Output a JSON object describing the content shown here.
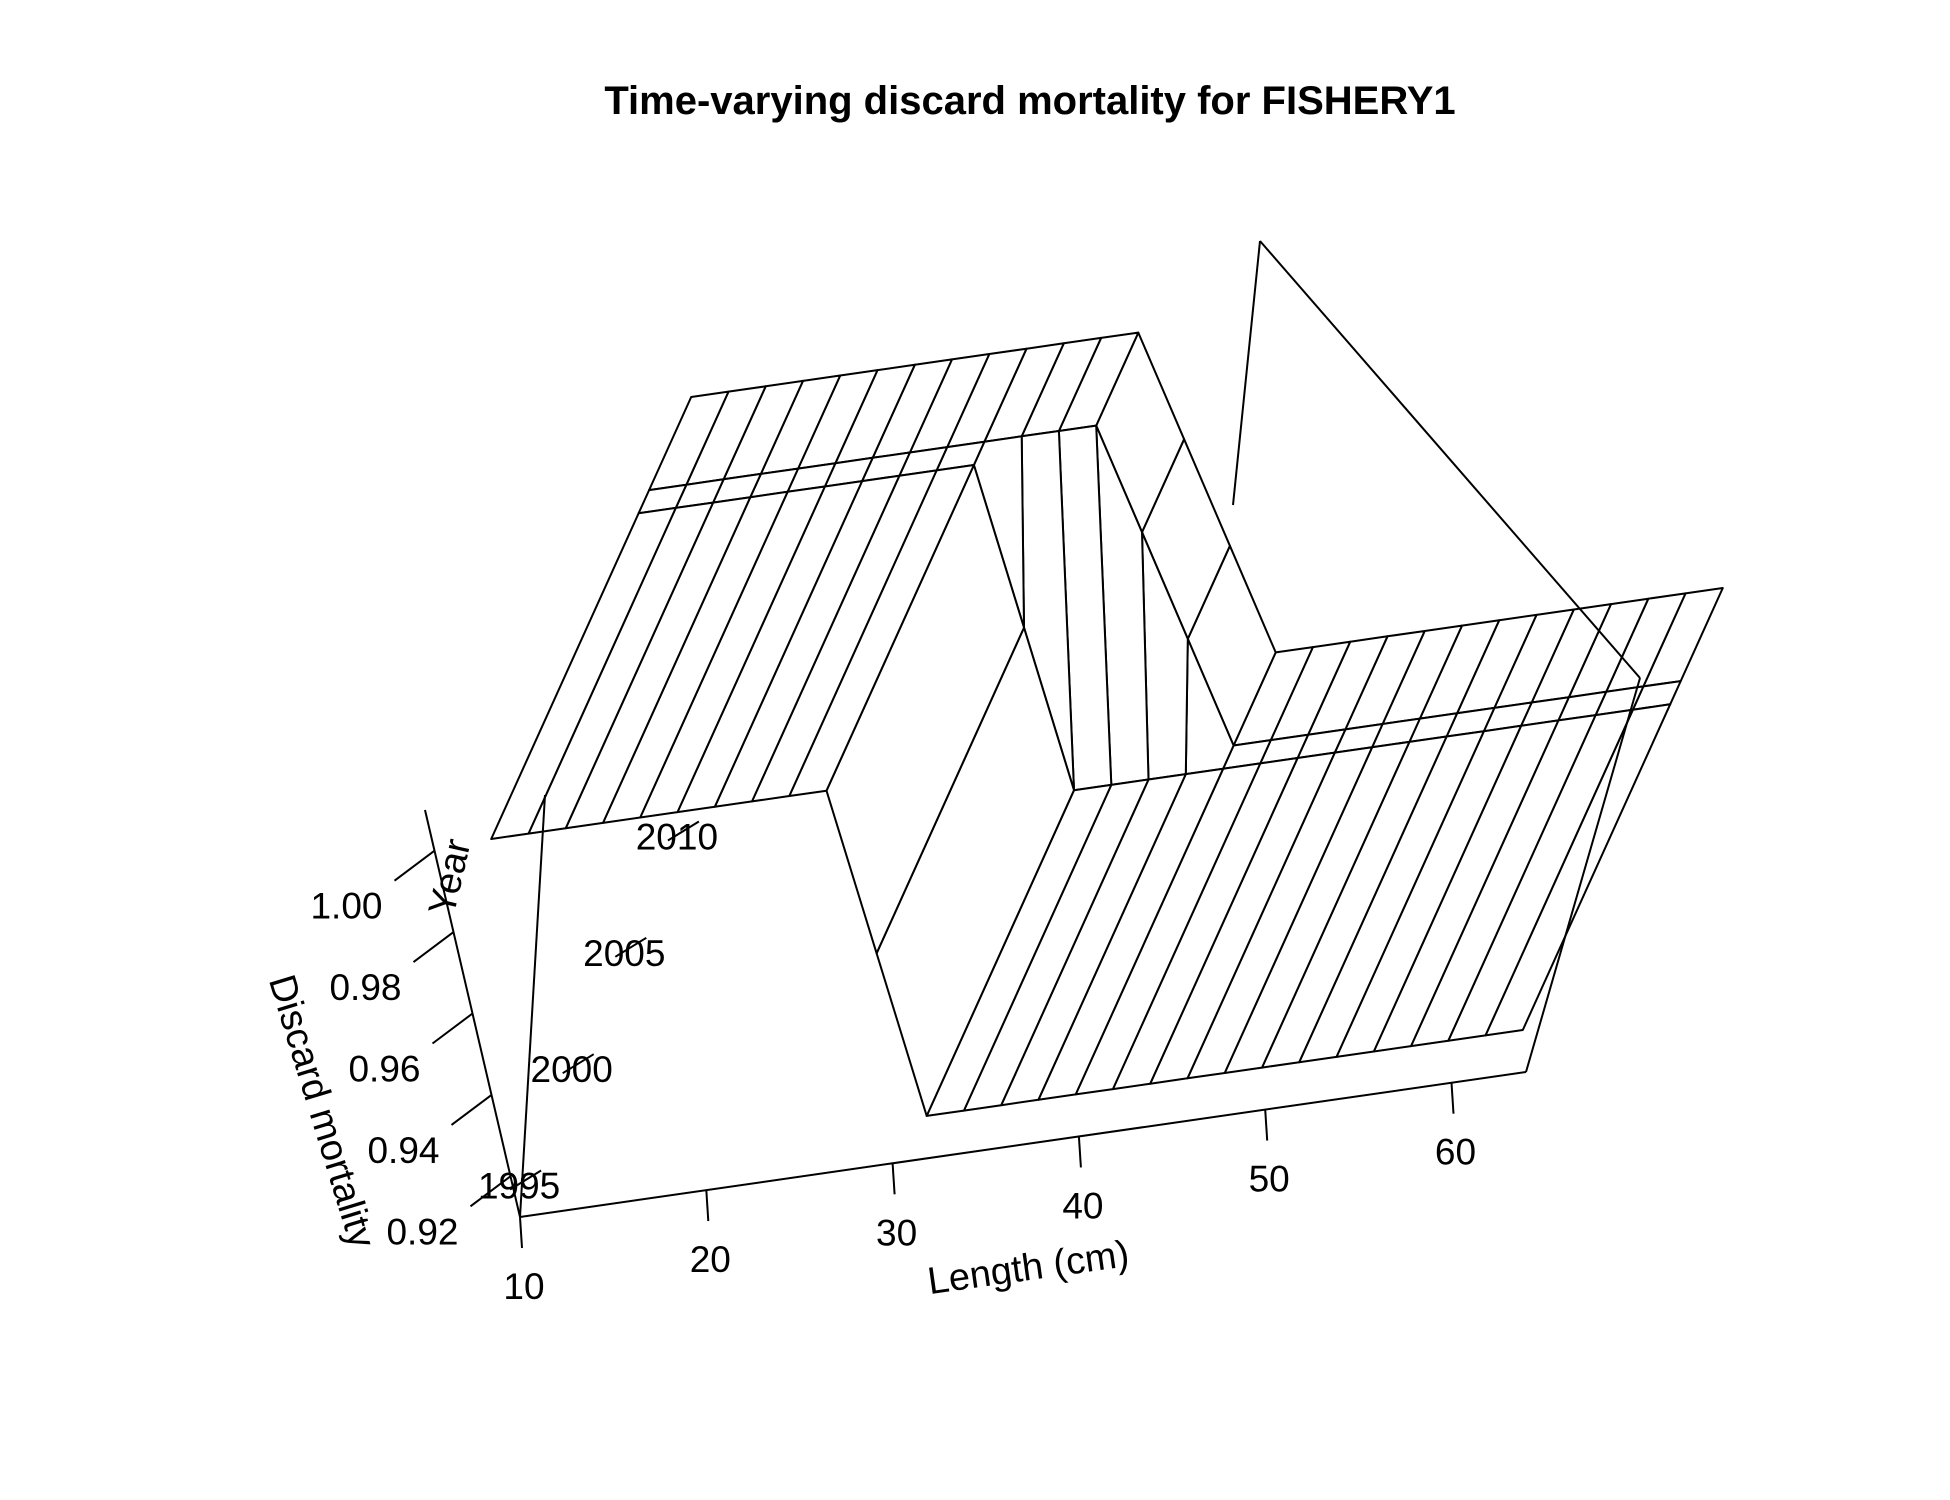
{
  "chart_data": {
    "type": "surface",
    "title": "Time-varying discard mortality for FISHERY1",
    "xlabel": "Length (cm)",
    "ylabel": "Year",
    "zlabel": "Discard mortality",
    "x_ticks": [
      "10",
      "20",
      "30",
      "40",
      "50",
      "60"
    ],
    "y_ticks": [
      "1995",
      "2000",
      "2005",
      "2010"
    ],
    "z_ticks": [
      "0.92",
      "0.94",
      "0.96",
      "0.98",
      "1.00"
    ],
    "xlim": [
      10,
      64
    ],
    "ylim": [
      1993,
      2012
    ],
    "zlim": [
      0.91,
      1.01
    ],
    "length_bins": [
      10,
      12,
      14,
      16,
      18,
      20,
      22,
      24,
      26,
      28,
      30,
      32,
      34,
      36,
      38,
      40,
      42,
      44,
      46,
      48,
      50,
      52,
      54,
      56,
      58,
      60,
      62,
      64
    ],
    "year_bounds": [
      1993,
      2007,
      2008,
      2012
    ],
    "periods": [
      {
        "years": "1993-2007",
        "full_mortality_up_to_cm": 28,
        "reduced_from_cm": 32,
        "high": 1.0,
        "low": 0.92
      },
      {
        "years": "2008-2012",
        "full_mortality_up_to_cm": 34,
        "reduced_from_cm": 40,
        "high": 1.0,
        "low": 0.92
      }
    ],
    "grid": false,
    "legend": "none"
  }
}
